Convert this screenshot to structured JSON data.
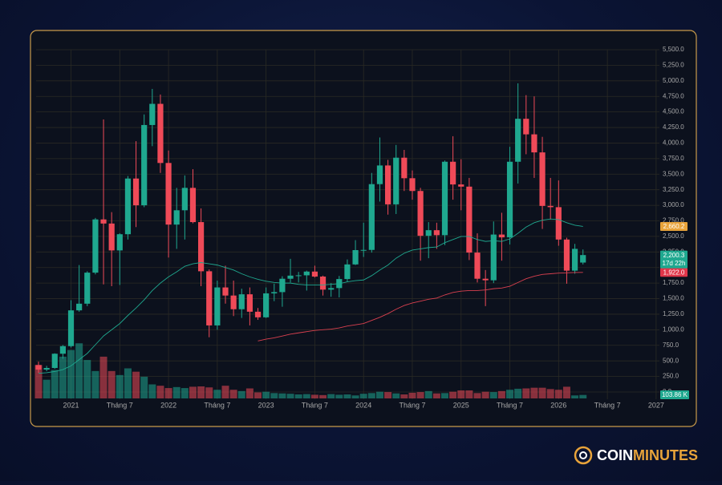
{
  "chart_data": {
    "type": "candlestick",
    "categories": [
      null,
      null,
      null,
      null,
      "2021",
      null,
      null,
      null,
      null,
      null,
      "Tháng 7",
      null,
      null,
      null,
      null,
      null,
      "2022",
      null,
      null,
      null,
      null,
      null,
      "Tháng 7",
      null,
      null,
      null,
      null,
      null,
      "2023",
      null,
      null,
      null,
      null,
      null,
      "Tháng 7",
      null,
      null,
      null,
      null,
      null,
      "2024",
      null,
      null,
      null,
      null,
      null,
      "Tháng 7",
      null,
      null,
      null,
      null,
      null,
      "2025",
      null,
      null,
      null,
      null,
      null,
      "Tháng 7",
      null,
      null,
      null,
      null,
      null,
      "2026",
      null,
      null,
      null,
      null,
      null,
      "Tháng 7",
      null,
      null,
      null,
      null,
      null,
      "2027"
    ],
    "open": [
      434,
      360,
      386,
      615,
      737,
      1312,
      1419,
      1918,
      2773,
      2707,
      2275,
      2535,
      3430,
      3000,
      4290,
      4630,
      3680,
      2690,
      2920,
      3280,
      2730,
      1940,
      1070,
      1680,
      1550,
      1330,
      1570,
      1290,
      1200,
      1585,
      1605,
      1820,
      1870,
      1875,
      1935,
      1855,
      1645,
      1670,
      1815,
      2050,
      2280,
      2283,
      3340,
      3640,
      3015,
      3765,
      3435,
      3230,
      2510,
      2600,
      2520,
      3700,
      3335,
      3300,
      2240,
      1820,
      1795,
      2530,
      2485,
      3700,
      4390,
      4140,
      3850,
      2990,
      2970,
      2450,
      1950,
      2080,
      null,
      null,
      null,
      null,
      null,
      null,
      null,
      null,
      null
    ],
    "high": [
      488,
      420,
      622,
      755,
      1475,
      2040,
      1940,
      2797,
      4380,
      2890,
      2550,
      3470,
      4030,
      4460,
      4870,
      4780,
      3880,
      3280,
      3480,
      3580,
      2950,
      1970,
      1790,
      2030,
      1790,
      1660,
      1680,
      1350,
      1680,
      1740,
      1860,
      2140,
      1930,
      1950,
      2030,
      1870,
      1750,
      1865,
      2130,
      2440,
      2720,
      3520,
      4090,
      3730,
      3970,
      3890,
      3560,
      3280,
      2730,
      2720,
      3720,
      4110,
      3740,
      3440,
      2550,
      1960,
      2740,
      2880,
      3940,
      4960,
      4770,
      4750,
      4100,
      3440,
      3400,
      2480,
      2380,
      2290,
      null,
      null,
      null,
      null,
      null,
      null,
      null,
      null,
      null
    ],
    "low": [
      308,
      335,
      372,
      535,
      715,
      1290,
      1380,
      1890,
      1730,
      1700,
      1720,
      2450,
      2650,
      2970,
      3950,
      3520,
      2160,
      2300,
      2450,
      2710,
      1700,
      880,
      1000,
      1420,
      1220,
      1190,
      1070,
      1160,
      1190,
      1460,
      1370,
      1760,
      1760,
      1630,
      1840,
      1550,
      1530,
      1520,
      1770,
      2040,
      2170,
      2240,
      3060,
      2850,
      2860,
      3230,
      3090,
      2110,
      2150,
      2300,
      2360,
      3090,
      2920,
      2120,
      1760,
      1380,
      1750,
      2110,
      2370,
      3350,
      3820,
      3440,
      2620,
      2770,
      2350,
      1740,
      1900,
      2050,
      null,
      null,
      null,
      null,
      null,
      null,
      null,
      null,
      null
    ],
    "close": [
      360,
      386,
      615,
      737,
      1312,
      1419,
      1918,
      2773,
      2707,
      2275,
      2535,
      3430,
      3000,
      4290,
      4630,
      3680,
      2690,
      2920,
      3280,
      2730,
      1940,
      1070,
      1680,
      1550,
      1330,
      1570,
      1290,
      1200,
      1585,
      1605,
      1820,
      1870,
      1875,
      1935,
      1855,
      1645,
      1670,
      1815,
      2050,
      2280,
      2283,
      3340,
      3640,
      3015,
      3765,
      3435,
      3230,
      2510,
      2600,
      2520,
      3700,
      3335,
      3300,
      2240,
      1820,
      1795,
      2530,
      2485,
      3700,
      4390,
      4140,
      3850,
      2990,
      2970,
      2450,
      1950,
      2300,
      2200.3,
      null,
      null,
      null,
      null,
      null,
      null,
      null,
      null,
      null
    ],
    "up_color": "#1fa88f",
    "down_color": "#ef4a58",
    "ylim": [
      0,
      5500
    ],
    "yticks": [
      {
        "value": 0,
        "label": "0.0"
      },
      {
        "value": 250,
        "label": "250.0"
      },
      {
        "value": 500,
        "label": "500.0"
      },
      {
        "value": 750,
        "label": "750.0"
      },
      {
        "value": 1000,
        "label": "1,000.0"
      },
      {
        "value": 1250,
        "label": "1,250.0"
      },
      {
        "value": 1500,
        "label": "1,500.0"
      },
      {
        "value": 1750,
        "label": "1,750.0"
      },
      {
        "value": 2000,
        "label": "2,000.0"
      },
      {
        "value": 2250,
        "label": "2,250.0"
      },
      {
        "value": 2500,
        "label": "2,500.0"
      },
      {
        "value": 2750,
        "label": "2,750.0"
      },
      {
        "value": 3000,
        "label": "3,000.0"
      },
      {
        "value": 3250,
        "label": "3,250.0"
      },
      {
        "value": 3500,
        "label": "3,500.0"
      },
      {
        "value": 3750,
        "label": "3,750.0"
      },
      {
        "value": 4000,
        "label": "4,000.0"
      },
      {
        "value": 4250,
        "label": "4,250.0"
      },
      {
        "value": 4500,
        "label": "4,500.0"
      },
      {
        "value": 4750,
        "label": "4,750.0"
      },
      {
        "value": 5000,
        "label": "5,000.0"
      },
      {
        "value": 5250,
        "label": "5,250.0"
      },
      {
        "value": 5500,
        "label": "5,500.0"
      }
    ],
    "grid": true,
    "price_label": "2,200.3",
    "countdown": "17d 22h",
    "moving_averages": [
      {
        "color": "#1fa88f",
        "label_color": "#e8a33a",
        "value_label": "2,660.2",
        "values": [
          300,
          310,
          330,
          360,
          420,
          520,
          620,
          760,
          900,
          1000,
          1100,
          1230,
          1350,
          1480,
          1630,
          1750,
          1850,
          1930,
          2020,
          2060,
          2080,
          2060,
          2040,
          2000,
          1960,
          1900,
          1850,
          1810,
          1780,
          1760,
          1750,
          1750,
          1730,
          1720,
          1720,
          1720,
          1730,
          1740,
          1770,
          1790,
          1800,
          1870,
          1960,
          2040,
          2150,
          2230,
          2280,
          2300,
          2320,
          2330,
          2400,
          2450,
          2500,
          2500,
          2450,
          2420,
          2430,
          2420,
          2460,
          2550,
          2650,
          2720,
          2760,
          2780,
          2770,
          2720,
          2680,
          2660.2,
          null,
          null,
          null,
          null,
          null,
          null,
          null,
          null,
          null
        ]
      },
      {
        "color": "#d9404f",
        "label_color": "#e0364a",
        "value_label": "1,922.0",
        "values": [
          null,
          null,
          null,
          null,
          null,
          null,
          null,
          null,
          null,
          null,
          null,
          null,
          null,
          null,
          null,
          null,
          null,
          null,
          null,
          null,
          null,
          null,
          null,
          null,
          null,
          null,
          null,
          820,
          850,
          870,
          900,
          930,
          950,
          970,
          990,
          1000,
          1010,
          1030,
          1060,
          1080,
          1100,
          1150,
          1200,
          1260,
          1330,
          1390,
          1430,
          1460,
          1490,
          1510,
          1560,
          1600,
          1620,
          1630,
          1630,
          1640,
          1660,
          1670,
          1700,
          1760,
          1820,
          1860,
          1890,
          1900,
          1910,
          1915,
          1920,
          1922.0,
          null,
          null,
          null,
          null,
          null,
          null,
          null,
          null,
          null
        ]
      }
    ],
    "volume": {
      "ylim": [
        0,
        1800
      ],
      "value_label": "103.86 K",
      "values": [
        1000,
        560,
        850,
        1250,
        1450,
        1650,
        1150,
        820,
        1250,
        820,
        700,
        900,
        800,
        650,
        420,
        380,
        310,
        340,
        310,
        350,
        360,
        330,
        260,
        380,
        260,
        220,
        300,
        180,
        200,
        160,
        150,
        140,
        120,
        130,
        110,
        100,
        130,
        110,
        120,
        90,
        140,
        160,
        200,
        190,
        150,
        120,
        170,
        190,
        220,
        150,
        160,
        200,
        240,
        240,
        160,
        200,
        190,
        220,
        260,
        290,
        300,
        320,
        320,
        280,
        260,
        350,
        90,
        103.86,
        null,
        null,
        null,
        null,
        null,
        null,
        null,
        null,
        null
      ]
    }
  },
  "brand": {
    "part1": "COIN",
    "part2": "MINUTES"
  }
}
